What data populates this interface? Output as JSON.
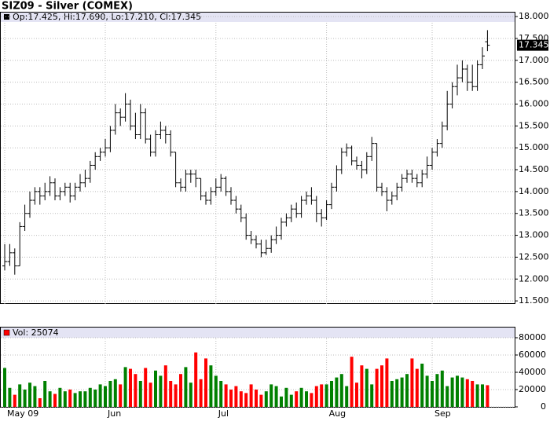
{
  "chart_data": {
    "type": "ohlc",
    "title": "SIZ09 - Silver (COMEX)",
    "legend_text": "Op:17.425, Hi:17.690, Lo:17.210, Cl:17.345",
    "volume_legend_text": "Vol: 25074",
    "last": {
      "value": 17.345,
      "label": "17.345"
    },
    "color": "#000000",
    "up_color": "#008000",
    "down_color": "#ff0000",
    "grid": true,
    "categories": [
      "May 09",
      null,
      null,
      null,
      null,
      null,
      null,
      null,
      null,
      null,
      null,
      null,
      null,
      null,
      null,
      null,
      null,
      null,
      null,
      null,
      "Jun",
      null,
      null,
      null,
      null,
      null,
      null,
      null,
      null,
      null,
      null,
      null,
      null,
      null,
      null,
      null,
      null,
      null,
      null,
      null,
      null,
      null,
      "Jul",
      null,
      null,
      null,
      null,
      null,
      null,
      null,
      null,
      null,
      null,
      null,
      null,
      null,
      null,
      null,
      null,
      null,
      null,
      null,
      null,
      null,
      "Aug",
      null,
      null,
      null,
      null,
      null,
      null,
      null,
      null,
      null,
      null,
      null,
      null,
      null,
      null,
      null,
      null,
      null,
      null,
      null,
      null,
      "Sep",
      null,
      null,
      null,
      null,
      null,
      null,
      null,
      null,
      null,
      null,
      null
    ],
    "open": [
      12.3,
      12.4,
      12.6,
      12.3,
      13.2,
      13.5,
      13.8,
      14.0,
      13.9,
      14.0,
      14.2,
      13.9,
      14.0,
      14.1,
      13.9,
      14.1,
      14.2,
      14.3,
      14.6,
      14.8,
      14.9,
      15.0,
      15.4,
      15.8,
      15.7,
      16.0,
      15.5,
      15.3,
      15.8,
      15.2,
      14.9,
      15.3,
      15.4,
      15.3,
      14.9,
      14.2,
      14.1,
      14.4,
      14.4,
      14.3,
      13.9,
      13.8,
      14.0,
      14.1,
      14.3,
      14.0,
      13.8,
      13.6,
      13.4,
      13.0,
      12.9,
      12.8,
      12.6,
      12.7,
      12.9,
      13.0,
      13.3,
      13.4,
      13.6,
      13.5,
      13.8,
      13.9,
      13.8,
      13.5,
      13.4,
      13.7,
      14.1,
      14.5,
      14.9,
      15.0,
      14.7,
      14.6,
      14.5,
      14.8,
      15.1,
      14.1,
      14.0,
      13.8,
      13.9,
      14.1,
      14.3,
      14.4,
      14.3,
      14.2,
      14.4,
      14.6,
      14.9,
      15.1,
      15.5,
      16.0,
      16.4,
      16.6,
      16.8,
      16.5,
      16.4,
      16.9,
      17.425
    ],
    "high": [
      12.8,
      12.8,
      12.7,
      13.3,
      13.7,
      14.0,
      14.1,
      14.1,
      14.2,
      14.35,
      14.3,
      14.1,
      14.2,
      14.2,
      14.2,
      14.4,
      14.5,
      14.7,
      14.9,
      15.0,
      15.2,
      15.5,
      16.0,
      15.9,
      16.25,
      16.1,
      15.8,
      16.0,
      15.9,
      15.3,
      15.4,
      15.6,
      15.5,
      15.4,
      14.9,
      14.3,
      14.5,
      14.5,
      14.5,
      14.3,
      14.0,
      14.1,
      14.3,
      14.4,
      14.35,
      14.1,
      13.9,
      13.7,
      13.5,
      13.1,
      13.0,
      12.9,
      12.9,
      13.0,
      13.2,
      13.4,
      13.5,
      13.7,
      13.75,
      13.9,
      14.0,
      14.1,
      13.9,
      13.6,
      13.8,
      14.2,
      14.6,
      15.0,
      15.1,
      15.05,
      14.8,
      14.7,
      14.9,
      15.25,
      15.1,
      14.2,
      14.1,
      14.0,
      14.2,
      14.4,
      14.5,
      14.5,
      14.4,
      14.5,
      14.8,
      15.0,
      15.2,
      15.6,
      16.3,
      16.5,
      16.9,
      17.0,
      16.9,
      16.9,
      17.0,
      17.3,
      17.69
    ],
    "low": [
      12.2,
      12.3,
      12.1,
      12.3,
      13.1,
      13.4,
      13.7,
      13.7,
      13.8,
      13.9,
      13.8,
      13.8,
      13.9,
      13.75,
      13.8,
      14.0,
      14.1,
      14.2,
      14.5,
      14.7,
      14.8,
      14.9,
      15.3,
      15.5,
      15.6,
      15.4,
      15.2,
      15.2,
      15.1,
      14.8,
      14.8,
      15.2,
      15.1,
      14.8,
      14.1,
      14.0,
      14.0,
      14.2,
      14.1,
      13.8,
      13.7,
      13.7,
      13.9,
      14.0,
      13.9,
      13.7,
      13.5,
      13.3,
      12.9,
      12.8,
      12.7,
      12.5,
      12.55,
      12.6,
      12.8,
      12.9,
      13.2,
      13.3,
      13.4,
      13.4,
      13.7,
      13.7,
      13.3,
      13.2,
      13.35,
      13.6,
      14.0,
      14.4,
      14.8,
      14.6,
      14.5,
      14.3,
      14.4,
      14.7,
      14.0,
      13.9,
      13.55,
      13.7,
      13.8,
      14.0,
      14.2,
      14.2,
      14.1,
      14.1,
      14.3,
      14.5,
      14.8,
      15.0,
      15.4,
      15.9,
      16.2,
      16.5,
      16.3,
      16.3,
      16.3,
      16.8,
      17.21
    ],
    "close": [
      12.4,
      12.6,
      12.3,
      13.2,
      13.5,
      13.8,
      14.0,
      13.9,
      14.0,
      14.2,
      13.9,
      14.0,
      14.1,
      13.9,
      14.1,
      14.2,
      14.3,
      14.6,
      14.8,
      14.9,
      15.0,
      15.4,
      15.8,
      15.7,
      16.0,
      15.5,
      15.3,
      15.8,
      15.2,
      14.9,
      15.3,
      15.4,
      15.3,
      14.9,
      14.2,
      14.1,
      14.4,
      14.4,
      14.3,
      13.9,
      13.8,
      14.0,
      14.1,
      14.3,
      14.0,
      13.8,
      13.6,
      13.4,
      13.0,
      12.9,
      12.8,
      12.6,
      12.7,
      12.9,
      13.0,
      13.3,
      13.4,
      13.6,
      13.5,
      13.8,
      13.9,
      13.8,
      13.5,
      13.4,
      13.7,
      14.1,
      14.5,
      14.9,
      15.0,
      14.7,
      14.6,
      14.5,
      14.8,
      15.1,
      14.1,
      14.0,
      13.8,
      13.9,
      14.1,
      14.3,
      14.4,
      14.3,
      14.2,
      14.4,
      14.6,
      14.9,
      15.1,
      15.5,
      16.0,
      16.4,
      16.6,
      16.8,
      16.5,
      16.4,
      16.9,
      17.1,
      17.345
    ],
    "volume": [
      45000,
      22000,
      14000,
      26000,
      20000,
      28000,
      24000,
      10000,
      30000,
      18000,
      15000,
      22000,
      18000,
      20000,
      16000,
      18000,
      18000,
      22000,
      20000,
      26000,
      24000,
      30000,
      32000,
      26000,
      46000,
      44000,
      38000,
      30000,
      45000,
      28000,
      42000,
      36000,
      48000,
      30000,
      26000,
      38000,
      46000,
      28000,
      63000,
      32000,
      56000,
      48000,
      36000,
      30000,
      26000,
      20000,
      24000,
      18000,
      16000,
      26000,
      20000,
      14000,
      18000,
      26000,
      24000,
      12000,
      22000,
      14000,
      18000,
      22000,
      18000,
      16000,
      24000,
      26000,
      26000,
      30000,
      34000,
      38000,
      24000,
      58000,
      28000,
      48000,
      44000,
      26000,
      44000,
      48000,
      56000,
      30000,
      32000,
      34000,
      38000,
      56000,
      44000,
      50000,
      36000,
      30000,
      38000,
      42000,
      24000,
      34000,
      36000,
      34000,
      32000,
      30000,
      26000,
      26000,
      25074
    ],
    "ylim": [
      11.43,
      18.11
    ],
    "yticks": [
      {
        "value": 11.5,
        "label": "11.500"
      },
      {
        "value": 12,
        "label": "12.000"
      },
      {
        "value": 12.5,
        "label": "12.500"
      },
      {
        "value": 13,
        "label": "13.000"
      },
      {
        "value": 13.5,
        "label": "13.500"
      },
      {
        "value": 14,
        "label": "14.000"
      },
      {
        "value": 14.5,
        "label": "14.500"
      },
      {
        "value": 15,
        "label": "15.000"
      },
      {
        "value": 15.5,
        "label": "15.500"
      },
      {
        "value": 16,
        "label": "16.000"
      },
      {
        "value": 16.5,
        "label": "16.500"
      },
      {
        "value": 17,
        "label": "17.000"
      },
      {
        "value": 17.5,
        "label": "17.500"
      },
      {
        "value": 18,
        "label": "18.000"
      }
    ],
    "y2lim": [
      0,
      92700
    ],
    "y2ticks": [
      0,
      20000,
      40000,
      60000,
      80000
    ]
  }
}
